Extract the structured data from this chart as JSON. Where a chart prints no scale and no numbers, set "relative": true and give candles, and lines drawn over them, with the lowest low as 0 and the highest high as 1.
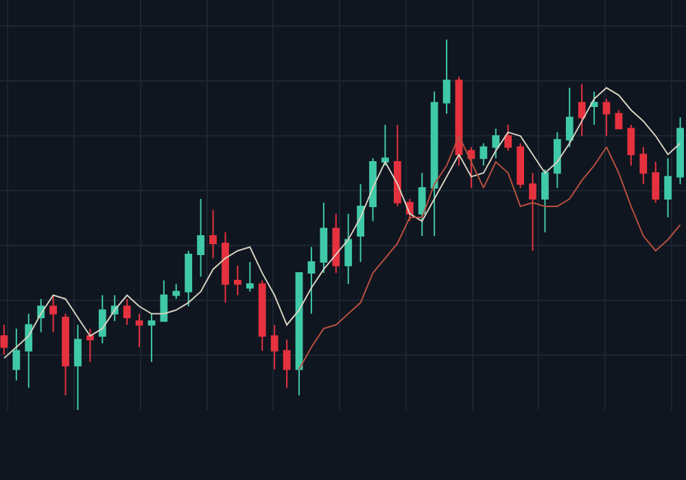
{
  "chart_data": {
    "type": "candlestick",
    "relative": true,
    "grid": true,
    "tick_labels": false,
    "categories": [
      null,
      null,
      null,
      null,
      null,
      null,
      null,
      null,
      null,
      null,
      null,
      null,
      null,
      null,
      null,
      null,
      null,
      null,
      null,
      null,
      null,
      null,
      null,
      null,
      null,
      null,
      null,
      null,
      null,
      null,
      null,
      null,
      null,
      null,
      null,
      null,
      null,
      null,
      null,
      null,
      null,
      null,
      null,
      null,
      null,
      null,
      null,
      null,
      null,
      null,
      null,
      null,
      null,
      null,
      null,
      null
    ],
    "ohlc": [
      [
        0.2,
        0.23,
        0.15,
        0.17
      ],
      [
        0.11,
        0.22,
        0.08,
        0.16
      ],
      [
        0.16,
        0.26,
        0.06,
        0.23
      ],
      [
        0.25,
        0.3,
        0.21,
        0.28
      ],
      [
        0.28,
        0.31,
        0.21,
        0.26
      ],
      [
        0.25,
        0.26,
        0.04,
        0.12
      ],
      [
        0.12,
        0.23,
        0,
        0.19
      ],
      [
        0.2,
        0.22,
        0.13,
        0.19
      ],
      [
        0.2,
        0.31,
        0.18,
        0.27
      ],
      [
        0.26,
        0.31,
        0.24,
        0.28
      ],
      [
        0.28,
        0.3,
        0.23,
        0.25
      ],
      [
        0.24,
        0.26,
        0.17,
        0.23
      ],
      [
        0.23,
        0.26,
        0.13,
        0.24
      ],
      [
        0.24,
        0.35,
        0.24,
        0.31
      ],
      [
        0.31,
        0.34,
        0.3,
        0.32
      ],
      [
        0.32,
        0.43,
        0.28,
        0.42
      ],
      [
        0.42,
        0.57,
        0.36,
        0.47
      ],
      [
        0.47,
        0.54,
        0.41,
        0.45
      ],
      [
        0.45,
        0.48,
        0.29,
        0.34
      ],
      [
        0.35,
        0.39,
        0.31,
        0.34
      ],
      [
        0.33,
        0.4,
        0.32,
        0.34
      ],
      [
        0.34,
        0.35,
        0.16,
        0.2
      ],
      [
        0.2,
        0.23,
        0.11,
        0.16
      ],
      [
        0.16,
        0.19,
        0.06,
        0.11
      ],
      [
        0.11,
        0.37,
        0.04,
        0.37
      ],
      [
        0.37,
        0.44,
        0.26,
        0.4
      ],
      [
        0.4,
        0.56,
        0.37,
        0.49
      ],
      [
        0.49,
        0.53,
        0.37,
        0.39
      ],
      [
        0.39,
        0.53,
        0.34,
        0.46
      ],
      [
        0.47,
        0.61,
        0.4,
        0.55
      ],
      [
        0.55,
        0.68,
        0.51,
        0.67
      ],
      [
        0.67,
        0.77,
        0.66,
        0.68
      ],
      [
        0.67,
        0.77,
        0.55,
        0.56
      ],
      [
        0.56,
        0.57,
        0.51,
        0.53
      ],
      [
        0.53,
        0.64,
        0.47,
        0.6
      ],
      [
        0.6,
        0.86,
        0.47,
        0.83
      ],
      [
        0.83,
        1,
        0.8,
        0.89
      ],
      [
        0.89,
        0.9,
        0.66,
        0.69
      ],
      [
        0.7,
        0.71,
        0.6,
        0.68
      ],
      [
        0.68,
        0.72,
        0.66,
        0.71
      ],
      [
        0.71,
        0.76,
        0.68,
        0.74
      ],
      [
        0.74,
        0.77,
        0.7,
        0.71
      ],
      [
        0.71,
        0.72,
        0.6,
        0.61
      ],
      [
        0.61,
        0.64,
        0.43,
        0.57
      ],
      [
        0.57,
        0.65,
        0.48,
        0.64
      ],
      [
        0.64,
        0.75,
        0.6,
        0.73
      ],
      [
        0.73,
        0.87,
        0.71,
        0.79
      ],
      [
        0.83,
        0.88,
        0.74,
        0.79
      ],
      [
        0.82,
        0.86,
        0.77,
        0.83
      ],
      [
        0.83,
        0.84,
        0.74,
        0.8
      ],
      [
        0.8,
        0.81,
        0.76,
        0.76
      ],
      [
        0.76,
        0.77,
        0.66,
        0.69
      ],
      [
        0.69,
        0.71,
        0.61,
        0.64
      ],
      [
        0.64,
        0.67,
        0.56,
        0.57
      ],
      [
        0.57,
        0.68,
        0.52,
        0.63
      ],
      [
        0.63,
        0.79,
        0.61,
        0.76
      ]
    ],
    "colors": [
      "#e5323e",
      "#40c9a9",
      "#40c9a9",
      "#40c9a9",
      "#e5323e",
      "#e5323e",
      "#40c9a9",
      "#e5323e",
      "#40c9a9",
      "#40c9a9",
      "#e5323e",
      "#e5323e",
      "#40c9a9",
      "#40c9a9",
      "#40c9a9",
      "#40c9a9",
      "#40c9a9",
      "#e5323e",
      "#e5323e",
      "#e5323e",
      "#40c9a9",
      "#e5323e",
      "#e5323e",
      "#e5323e",
      "#40c9a9",
      "#40c9a9",
      "#40c9a9",
      "#e5323e",
      "#40c9a9",
      "#40c9a9",
      "#40c9a9",
      "#40c9a9",
      "#e5323e",
      "#e5323e",
      "#40c9a9",
      "#40c9a9",
      "#40c9a9",
      "#e5323e",
      "#e5323e",
      "#40c9a9",
      "#40c9a9",
      "#e5323e",
      "#e5323e",
      "#e5323e",
      "#40c9a9",
      "#40c9a9",
      "#40c9a9",
      "#e5323e",
      "#40c9a9",
      "#e5323e",
      "#e5323e",
      "#e5323e",
      "#e5323e",
      "#e5323e",
      "#40c9a9",
      "#40c9a9"
    ],
    "series": [
      {
        "type": "line",
        "color": "#d9d2c2",
        "values": [
          0.14,
          0.17,
          0.2,
          0.26,
          0.31,
          0.3,
          0.25,
          0.2,
          0.22,
          0.27,
          0.31,
          0.28,
          0.26,
          0.26,
          0.27,
          0.29,
          0.32,
          0.38,
          0.41,
          0.43,
          0.44,
          0.37,
          0.31,
          0.23,
          0.27,
          0.33,
          0.38,
          0.42,
          0.46,
          0.52,
          0.6,
          0.67,
          0.61,
          0.53,
          0.51,
          0.57,
          0.63,
          0.69,
          0.63,
          0.64,
          0.7,
          0.75,
          0.74,
          0.69,
          0.64,
          0.67,
          0.72,
          0.78,
          0.84,
          0.87,
          0.85,
          0.81,
          0.78,
          0.74,
          0.69,
          0.72
        ]
      },
      {
        "type": "line",
        "color": "#b9503f",
        "values": [
          null,
          null,
          null,
          null,
          null,
          null,
          null,
          null,
          null,
          null,
          null,
          null,
          null,
          null,
          null,
          null,
          null,
          null,
          null,
          null,
          null,
          null,
          null,
          null,
          0.11,
          0.17,
          0.22,
          0.23,
          0.26,
          0.29,
          0.37,
          0.41,
          0.45,
          0.52,
          0.52,
          0.61,
          0.66,
          0.74,
          0.67,
          0.6,
          0.67,
          0.64,
          0.55,
          0.56,
          0.55,
          0.55,
          0.57,
          0.62,
          0.66,
          0.71,
          0.64,
          0.55,
          0.47,
          0.43,
          0.46,
          0.5
        ]
      }
    ]
  }
}
